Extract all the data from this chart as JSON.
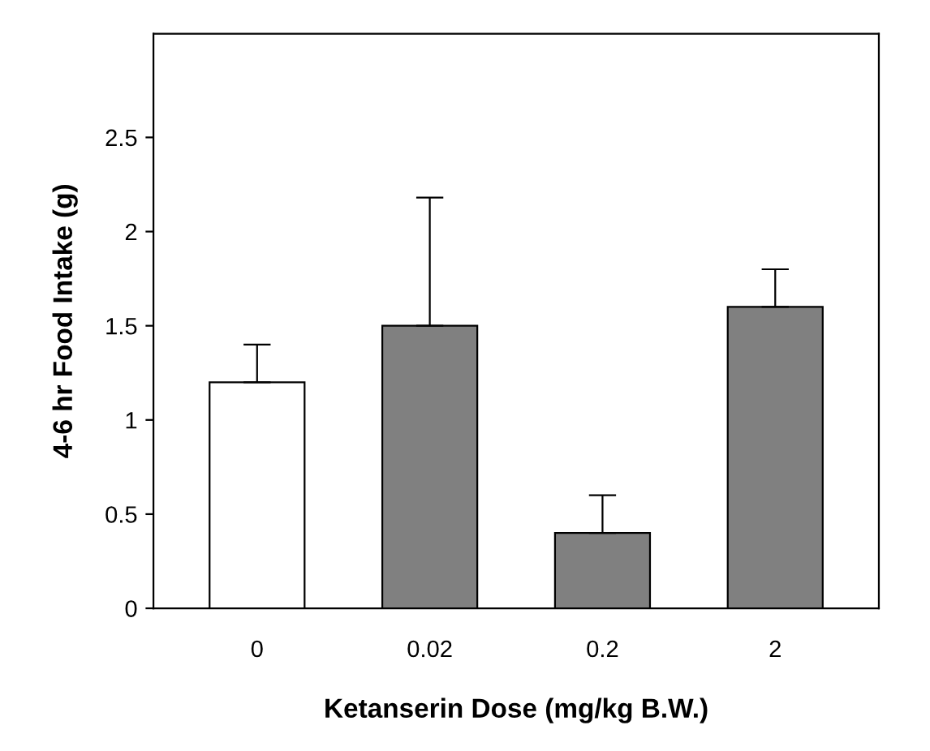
{
  "chart_data": {
    "type": "bar",
    "xlabel": "Ketanserin Dose (mg/kg B.W.)",
    "ylabel": "4-6 hr Food Intake (g)",
    "categories": [
      "0",
      "0.02",
      "0.2",
      "2"
    ],
    "values": [
      1.2,
      1.5,
      0.4,
      1.6
    ],
    "colors": [
      "#ffffff",
      "#808080",
      "#808080",
      "#808080"
    ],
    "errors": [
      [
        1.2,
        1.4
      ],
      [
        1.5,
        2.18
      ],
      [
        0.4,
        0.6
      ],
      [
        1.6,
        1.8
      ]
    ],
    "ylim": [
      0,
      3.05
    ],
    "yticks": [
      0,
      0.5,
      1,
      1.5,
      2,
      2.5
    ],
    "grid": false
  }
}
